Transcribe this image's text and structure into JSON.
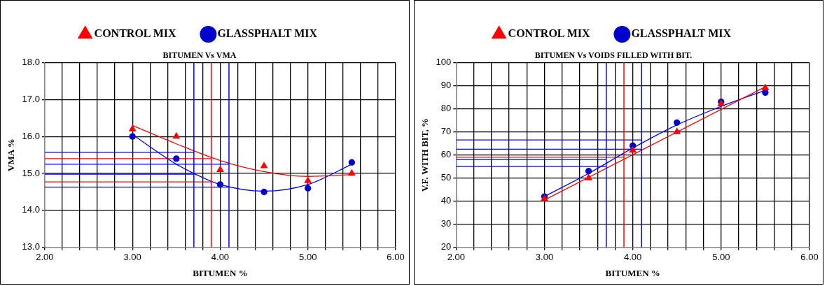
{
  "chart_data": [
    {
      "type": "scatter",
      "title": "BITUMEN Vs VMA",
      "xlabel": "BITUMEN %",
      "ylabel": "VMA %",
      "legend": "top",
      "grid": true,
      "xlim": [
        2,
        6
      ],
      "xticks": [
        {
          "value": 2,
          "label": "2.00"
        },
        {
          "value": 2.2,
          "label": null
        },
        {
          "value": 2.4,
          "label": null
        },
        {
          "value": 2.6,
          "label": null
        },
        {
          "value": 2.8,
          "label": null
        },
        {
          "value": 3,
          "label": "3.00"
        },
        {
          "value": 3.2,
          "label": null
        },
        {
          "value": 3.4,
          "label": null
        },
        {
          "value": 3.6,
          "label": null
        },
        {
          "value": 3.8,
          "label": null
        },
        {
          "value": 4,
          "label": "4.00"
        },
        {
          "value": 4.2,
          "label": null
        },
        {
          "value": 4.4,
          "label": null
        },
        {
          "value": 4.6,
          "label": null
        },
        {
          "value": 4.8,
          "label": null
        },
        {
          "value": 5,
          "label": "5.00"
        },
        {
          "value": 5.2,
          "label": null
        },
        {
          "value": 5.4,
          "label": null
        },
        {
          "value": 5.6,
          "label": null
        },
        {
          "value": 5.8,
          "label": null
        },
        {
          "value": 6,
          "label": "6.00"
        }
      ],
      "ylim": [
        13,
        18
      ],
      "yticks": [
        {
          "value": 13,
          "label": "13.0"
        },
        {
          "value": 14,
          "label": "14.0"
        },
        {
          "value": 15,
          "label": "15.0"
        },
        {
          "value": 16,
          "label": "16.0"
        },
        {
          "value": 17,
          "label": "17.0"
        },
        {
          "value": 18,
          "label": "18.0"
        }
      ],
      "ref_lines": [
        {
          "axis": "x",
          "value": 3.7,
          "color": "#0000ff"
        },
        {
          "axis": "x",
          "value": 3.9,
          "color": "#ff0000"
        },
        {
          "axis": "x",
          "value": 4.1,
          "color": "#0000ff"
        }
      ],
      "series": [
        {
          "name": "CONTROL MIX",
          "type": "scatter",
          "marker": "triangle",
          "color": "#ff0000",
          "x": [
            3,
            3.5,
            4,
            4.5,
            5,
            5.5
          ],
          "values": [
            16.2,
            16.0,
            15.1,
            15.2,
            14.8,
            15.0
          ]
        },
        {
          "name": "GLASSPHALT MIX",
          "type": "scatter",
          "marker": "circle",
          "color": "#0000cc",
          "x": [
            3,
            3.5,
            4,
            4.5,
            5,
            5.5
          ],
          "values": [
            16.0,
            15.4,
            14.7,
            14.5,
            14.6,
            15.3
          ]
        },
        {
          "type": "line",
          "marker": "none",
          "color": "#ff0000",
          "x": [
            3,
            3.5,
            4,
            4.5,
            5,
            5.5
          ],
          "values": [
            16.3,
            15.8,
            15.35,
            15.05,
            14.92,
            14.97
          ]
        },
        {
          "type": "line",
          "marker": "none",
          "color": "#0000ff",
          "x": [
            3,
            3.5,
            3.7,
            4,
            4.5,
            5,
            5.5
          ],
          "values": [
            16.05,
            15.25,
            15.0,
            14.7,
            14.52,
            14.7,
            15.25
          ]
        },
        {
          "type": "line",
          "marker": "none",
          "color": "#0000ff",
          "x": [
            2,
            3.7
          ],
          "values": [
            15.57,
            15.57
          ]
        },
        {
          "type": "line",
          "marker": "none",
          "color": "#ff0000",
          "x": [
            2,
            3.9
          ],
          "values": [
            15.4,
            15.4
          ]
        },
        {
          "type": "line",
          "marker": "none",
          "color": "#0000ff",
          "x": [
            2,
            4.1
          ],
          "values": [
            15.25,
            15.25
          ]
        },
        {
          "type": "line",
          "marker": "none",
          "color": "#0000ff",
          "x": [
            2,
            3.7
          ],
          "values": [
            14.98,
            14.98
          ]
        },
        {
          "type": "line",
          "marker": "none",
          "color": "#ff0000",
          "x": [
            2,
            3.9
          ],
          "values": [
            14.77,
            14.77
          ]
        },
        {
          "type": "line",
          "marker": "none",
          "color": "#0000ff",
          "x": [
            2,
            4.1
          ],
          "values": [
            14.63,
            14.63
          ]
        }
      ]
    },
    {
      "type": "scatter",
      "title": "BITUMEN Vs VOIDS FILLED WITH BIT.",
      "xlabel": "BITUMEN %",
      "ylabel": "V.F. WITH BIT, %",
      "legend": "top",
      "grid": true,
      "xlim": [
        2,
        6
      ],
      "xticks": [
        {
          "value": 2,
          "label": "2.00"
        },
        {
          "value": 2.2,
          "label": null
        },
        {
          "value": 2.4,
          "label": null
        },
        {
          "value": 2.6,
          "label": null
        },
        {
          "value": 2.8,
          "label": null
        },
        {
          "value": 3,
          "label": "3.00"
        },
        {
          "value": 3.2,
          "label": null
        },
        {
          "value": 3.4,
          "label": null
        },
        {
          "value": 3.6,
          "label": null
        },
        {
          "value": 3.8,
          "label": null
        },
        {
          "value": 4,
          "label": "4.00"
        },
        {
          "value": 4.2,
          "label": null
        },
        {
          "value": 4.4,
          "label": null
        },
        {
          "value": 4.6,
          "label": null
        },
        {
          "value": 4.8,
          "label": null
        },
        {
          "value": 5,
          "label": "5.00"
        },
        {
          "value": 5.2,
          "label": null
        },
        {
          "value": 5.4,
          "label": null
        },
        {
          "value": 5.6,
          "label": null
        },
        {
          "value": 5.8,
          "label": null
        },
        {
          "value": 6,
          "label": "6.00"
        }
      ],
      "ylim": [
        20,
        100
      ],
      "yticks": [
        20,
        30,
        40,
        50,
        60,
        70,
        80,
        90,
        100
      ],
      "ref_lines": [
        {
          "axis": "x",
          "value": 3.7,
          "color": "#0000ff"
        },
        {
          "axis": "x",
          "value": 3.9,
          "color": "#ff0000"
        },
        {
          "axis": "x",
          "value": 4.1,
          "color": "#0000ff"
        }
      ],
      "series": [
        {
          "name": "CONTROL MIX",
          "type": "scatter",
          "marker": "triangle",
          "color": "#ff0000",
          "x": [
            3,
            3.5,
            4,
            4.5,
            5,
            5.5
          ],
          "values": [
            41,
            50,
            62,
            70,
            82,
            89
          ]
        },
        {
          "name": "GLASSPHALT MIX",
          "type": "scatter",
          "marker": "circle",
          "color": "#0000cc",
          "x": [
            3,
            3.5,
            4,
            4.5,
            5,
            5.5
          ],
          "values": [
            42,
            53,
            64,
            74,
            83,
            87
          ]
        },
        {
          "type": "line",
          "marker": "none",
          "color": "#ff0000",
          "x": [
            3,
            5.5
          ],
          "values": [
            40.5,
            89.5
          ]
        },
        {
          "type": "line",
          "marker": "none",
          "color": "#0000ff",
          "x": [
            3,
            3.5,
            4,
            4.5,
            5,
            5.5
          ],
          "values": [
            42,
            52,
            63,
            73,
            81,
            88
          ]
        },
        {
          "type": "line",
          "marker": "none",
          "color": "#0000ff",
          "x": [
            2,
            4.1
          ],
          "values": [
            66.5,
            66.5
          ]
        },
        {
          "type": "line",
          "marker": "none",
          "color": "#0000ff",
          "x": [
            2,
            4.1
          ],
          "values": [
            62.5,
            62.5
          ]
        },
        {
          "type": "line",
          "marker": "none",
          "color": "#ff0000",
          "x": [
            2,
            3.9
          ],
          "values": [
            59,
            59
          ]
        },
        {
          "type": "line",
          "marker": "none",
          "color": "#0000ff",
          "x": [
            2,
            3.7
          ],
          "values": [
            58,
            58
          ]
        },
        {
          "type": "line",
          "marker": "none",
          "color": "#0000ff",
          "x": [
            2,
            3.7
          ],
          "values": [
            55,
            55
          ]
        }
      ]
    }
  ]
}
